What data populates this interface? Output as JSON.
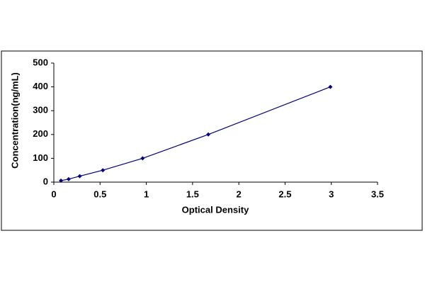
{
  "chart_data": {
    "type": "line",
    "x_label": "Optical Density",
    "y_label": "Concentration(ng/mL)",
    "x": [
      0.077,
      0.16,
      0.28,
      0.53,
      0.96,
      1.67,
      2.99
    ],
    "series": [
      {
        "color": "#000080",
        "values": [
          6.25,
          12.5,
          25,
          50,
          100,
          200,
          400
        ]
      }
    ],
    "xlim": [
      0,
      3.5
    ],
    "xticks": [
      0,
      0.5,
      1,
      1.5,
      2,
      2.5,
      3,
      3.5
    ],
    "ylim": [
      0,
      500
    ],
    "yticks": [
      0,
      100,
      200,
      300,
      400,
      500
    ],
    "grid": false,
    "markers": true
  }
}
